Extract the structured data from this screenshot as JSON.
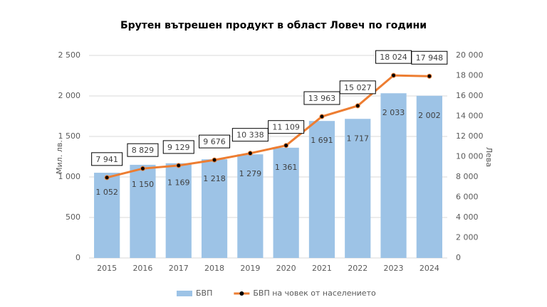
{
  "chart_data": {
    "type": "combo",
    "title": "Брутен вътрешен продукт в област Ловеч по години",
    "y_label": "Мил. лв.",
    "y2_label": "Лева",
    "categories": [
      "2015",
      "2016",
      "2017",
      "2018",
      "2019",
      "2020",
      "2021",
      "2022",
      "2023",
      "2024"
    ],
    "series": [
      {
        "name": "БВП",
        "type": "bar",
        "color": "#9dc3e6",
        "values": [
          1052,
          1150,
          1169,
          1218,
          1279,
          1361,
          1691,
          1717,
          2033,
          2002
        ],
        "value_labels": [
          "1 052",
          "1 150",
          "1 169",
          "1 218",
          "1 279",
          "1 361",
          "1 691",
          "1 717",
          "2 033",
          "2 002"
        ]
      },
      {
        "name": "БВП на човек от населението",
        "type": "line",
        "axis": "y2",
        "color": "#ed7d31",
        "values": [
          7941,
          8829,
          9129,
          9676,
          10338,
          11109,
          13963,
          15027,
          18024,
          17948
        ],
        "value_labels": [
          "7 941",
          "8 829",
          "9 129",
          "9 676",
          "10 338",
          "11 109",
          "13 963",
          "15 027",
          "18 024",
          "17 948"
        ]
      }
    ],
    "ylim": [
      0,
      2500
    ],
    "yticks": [
      0,
      500,
      {
        "value": 1000,
        "label": "1 000"
      },
      {
        "value": 1500,
        "label": "1 500"
      },
      {
        "value": 2000,
        "label": "2 000"
      },
      {
        "value": 2500,
        "label": "2 500"
      }
    ],
    "y2lim": [
      0,
      20000
    ],
    "y2ticks": [
      0,
      {
        "value": 2000,
        "label": "2 000"
      },
      {
        "value": 4000,
        "label": "4 000"
      },
      {
        "value": 6000,
        "label": "6 000"
      },
      {
        "value": 8000,
        "label": "8 000"
      },
      {
        "value": 10000,
        "label": "10 000"
      },
      {
        "value": 12000,
        "label": "12 000"
      },
      {
        "value": 14000,
        "label": "14 000"
      },
      {
        "value": 16000,
        "label": "16 000"
      },
      {
        "value": 18000,
        "label": "18 000"
      },
      {
        "value": 20000,
        "label": "20 000"
      }
    ],
    "grid": true
  }
}
